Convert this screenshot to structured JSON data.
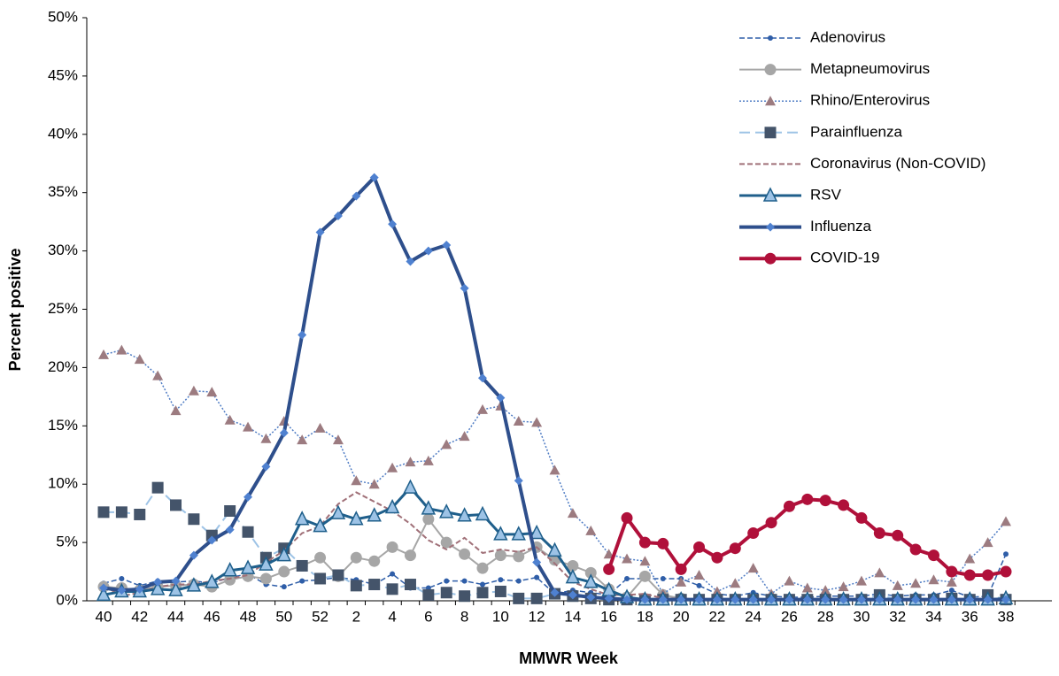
{
  "chart_data": {
    "type": "line",
    "xlabel": "MMWR Week",
    "ylabel": "Percent positive",
    "categories": [
      "40",
      null,
      "42",
      null,
      "44",
      null,
      "46",
      null,
      "48",
      null,
      "50",
      null,
      "52",
      null,
      "2",
      null,
      "4",
      null,
      "6",
      null,
      "8",
      null,
      "10",
      null,
      "12",
      null,
      "14",
      null,
      "16",
      null,
      "18",
      null,
      "20",
      null,
      "22",
      null,
      "24",
      null,
      "26",
      null,
      "28",
      null,
      "30",
      null,
      "32",
      null,
      "34",
      null,
      "36",
      null,
      "38"
    ],
    "ylim": [
      0,
      50
    ],
    "yticks": [
      {
        "value": 0,
        "label": "0%"
      },
      {
        "value": 5,
        "label": "5%"
      },
      {
        "value": 10,
        "label": "10%"
      },
      {
        "value": 15,
        "label": "15%"
      },
      {
        "value": 20,
        "label": "20%"
      },
      {
        "value": 25,
        "label": "25%"
      },
      {
        "value": 30,
        "label": "30%"
      },
      {
        "value": 35,
        "label": "35%"
      },
      {
        "value": 40,
        "label": "40%"
      },
      {
        "value": 45,
        "label": "45%"
      },
      {
        "value": 50,
        "label": "50%"
      }
    ],
    "legend": "top-right",
    "series": [
      {
        "name": "Adenovirus",
        "color": "#2f5ea8",
        "marker_color": "#2f5ea8",
        "dash": "dashed",
        "marker": "small-circle",
        "width": 1.5,
        "values": [
          1.5,
          1.9,
          1.3,
          1.7,
          1.6,
          1.7,
          1.5,
          2.0,
          2.3,
          1.4,
          1.2,
          1.7,
          1.8,
          2.0,
          1.8,
          1.4,
          2.3,
          1.1,
          1.1,
          1.7,
          1.7,
          1.4,
          1.8,
          1.7,
          2.0,
          0.6,
          0.9,
          0.7,
          0.5,
          1.9,
          1.9,
          1.9,
          1.9,
          1.3,
          0.6,
          0.4,
          0.7,
          0.4,
          0.3,
          0.3,
          0.4,
          0.4,
          0.4,
          0.6,
          0.4,
          0.5,
          0.5,
          0.9,
          0.3,
          0.4,
          4.0
        ]
      },
      {
        "name": "Metapneumovirus",
        "color": "#a6a6a6",
        "marker_color": "#a6a6a6",
        "dash": "solid",
        "marker": "circle",
        "width": 2,
        "values": [
          1.2,
          1.1,
          0.9,
          1.2,
          1.3,
          1.4,
          1.2,
          1.8,
          2.1,
          1.9,
          2.5,
          3.0,
          3.7,
          2.1,
          3.7,
          3.4,
          4.6,
          3.9,
          7.0,
          5.0,
          4.0,
          2.8,
          3.9,
          3.8,
          4.6,
          3.5,
          3.0,
          2.4,
          1.0,
          0.3,
          2.1,
          0.5,
          0.2,
          0.1,
          0.1,
          0.1,
          0.1,
          0.1,
          0.1,
          0.1,
          0.1,
          0.1,
          0.1,
          0.1,
          0.1,
          0.1,
          0.1,
          0.1,
          0.1,
          0.1,
          0.1
        ]
      },
      {
        "name": "Rhino/Enterovirus",
        "color": "#4f7cc4",
        "marker_color": "#9c7b80",
        "dash": "dotted",
        "marker": "triangle",
        "width": 1.5,
        "values": [
          21.1,
          21.5,
          20.7,
          19.3,
          16.3,
          18.0,
          17.9,
          15.5,
          14.9,
          13.9,
          15.4,
          13.8,
          14.8,
          13.8,
          10.3,
          10.0,
          11.4,
          11.9,
          12.0,
          13.4,
          14.1,
          16.4,
          16.7,
          15.4,
          15.3,
          11.2,
          7.5,
          6.0,
          4.0,
          3.6,
          3.4,
          0.6,
          1.6,
          2.2,
          0.8,
          1.5,
          2.8,
          0.6,
          1.7,
          1.1,
          0.9,
          1.2,
          1.7,
          2.4,
          1.3,
          1.5,
          1.8,
          1.6,
          3.6,
          5.0,
          6.8
        ]
      },
      {
        "name": "Parainfluenza",
        "color": "#9dc3e6",
        "marker_color": "#44546a",
        "dash": "longdash",
        "marker": "square",
        "width": 2,
        "values": [
          7.6,
          7.6,
          7.4,
          9.7,
          8.2,
          7.0,
          5.6,
          7.7,
          5.9,
          3.7,
          4.5,
          3.0,
          1.9,
          2.2,
          1.3,
          1.4,
          1.0,
          1.4,
          0.5,
          0.7,
          0.4,
          0.7,
          0.8,
          0.2,
          0.2,
          0.6,
          0.4,
          0.2,
          0.1,
          0.1,
          0.1,
          0.1,
          0.1,
          0.1,
          0.1,
          0.1,
          0.1,
          0.1,
          0.1,
          0.1,
          0.1,
          0.1,
          0.1,
          0.5,
          0.1,
          0.1,
          0.1,
          0.2,
          0.1,
          0.5,
          0.1
        ]
      },
      {
        "name": "Coronavirus (Non-COVID)",
        "color": "#a07078",
        "marker_color": "#a07078",
        "dash": "dashed",
        "marker": "none",
        "width": 2,
        "values": [
          1.3,
          0.4,
          0.7,
          1.2,
          1.4,
          1.4,
          1.7,
          1.9,
          2.2,
          3.3,
          4.3,
          5.8,
          6.4,
          8.3,
          9.3,
          8.5,
          7.7,
          6.6,
          5.2,
          4.4,
          5.4,
          4.1,
          4.4,
          4.2,
          4.6,
          3.2,
          1.6,
          1.0,
          0.5,
          0.5,
          0.6,
          0.2,
          0.2,
          0.1,
          0.1,
          0.1,
          0.1,
          0.1,
          0.1,
          0.1,
          0.1,
          0.1,
          0.1,
          0.1,
          0.1,
          0.1,
          0.1,
          0.1,
          0.1,
          0.1,
          0.2
        ]
      },
      {
        "name": "RSV",
        "color": "#1f5f8b",
        "marker_color": "#9dc3e6",
        "dash": "solid",
        "marker": "big-triangle",
        "width": 3,
        "values": [
          0.5,
          0.8,
          0.8,
          1.0,
          0.9,
          1.3,
          1.6,
          2.6,
          2.8,
          3.1,
          3.9,
          7.0,
          6.4,
          7.5,
          7.0,
          7.3,
          8.0,
          9.7,
          7.9,
          7.6,
          7.3,
          7.4,
          5.7,
          5.7,
          5.8,
          4.3,
          2.0,
          1.6,
          0.9,
          0.3,
          0.1,
          0.1,
          0.1,
          0.1,
          0.1,
          0.1,
          0.1,
          0.1,
          0.1,
          0.1,
          0.1,
          0.1,
          0.1,
          0.1,
          0.1,
          0.1,
          0.1,
          0.1,
          0.1,
          0.1,
          0.2
        ]
      },
      {
        "name": "Influenza",
        "color": "#2e4f8c",
        "marker_color": "#4f81d0",
        "dash": "solid",
        "marker": "diamond",
        "width": 4,
        "values": [
          1.1,
          0.9,
          1.0,
          1.6,
          1.7,
          3.9,
          5.2,
          6.1,
          8.9,
          11.5,
          14.4,
          22.8,
          31.6,
          33.0,
          34.7,
          36.3,
          32.3,
          29.1,
          30.0,
          30.5,
          26.8,
          19.1,
          17.4,
          10.3,
          3.3,
          0.7,
          0.5,
          0.3,
          0.2,
          0.1,
          0.1,
          0.1,
          0.1,
          0.1,
          0.1,
          0.1,
          0.1,
          0.1,
          0.1,
          0.1,
          0.1,
          0.1,
          0.1,
          0.1,
          0.1,
          0.1,
          0.1,
          0.1,
          0.1,
          0.1,
          0.1
        ]
      },
      {
        "name": "COVID-19",
        "color": "#b0103a",
        "marker_color": "#b0103a",
        "dash": "solid",
        "marker": "circle",
        "width": 4,
        "values": [
          null,
          null,
          null,
          null,
          null,
          null,
          null,
          null,
          null,
          null,
          null,
          null,
          null,
          null,
          null,
          null,
          null,
          null,
          null,
          null,
          null,
          null,
          null,
          null,
          null,
          null,
          null,
          null,
          2.7,
          7.1,
          5.0,
          4.9,
          2.7,
          4.6,
          3.7,
          4.5,
          5.8,
          6.7,
          8.1,
          8.7,
          8.6,
          8.2,
          7.1,
          5.8,
          5.6,
          4.4,
          3.9,
          2.5,
          2.2,
          2.2,
          2.5
        ]
      }
    ]
  }
}
